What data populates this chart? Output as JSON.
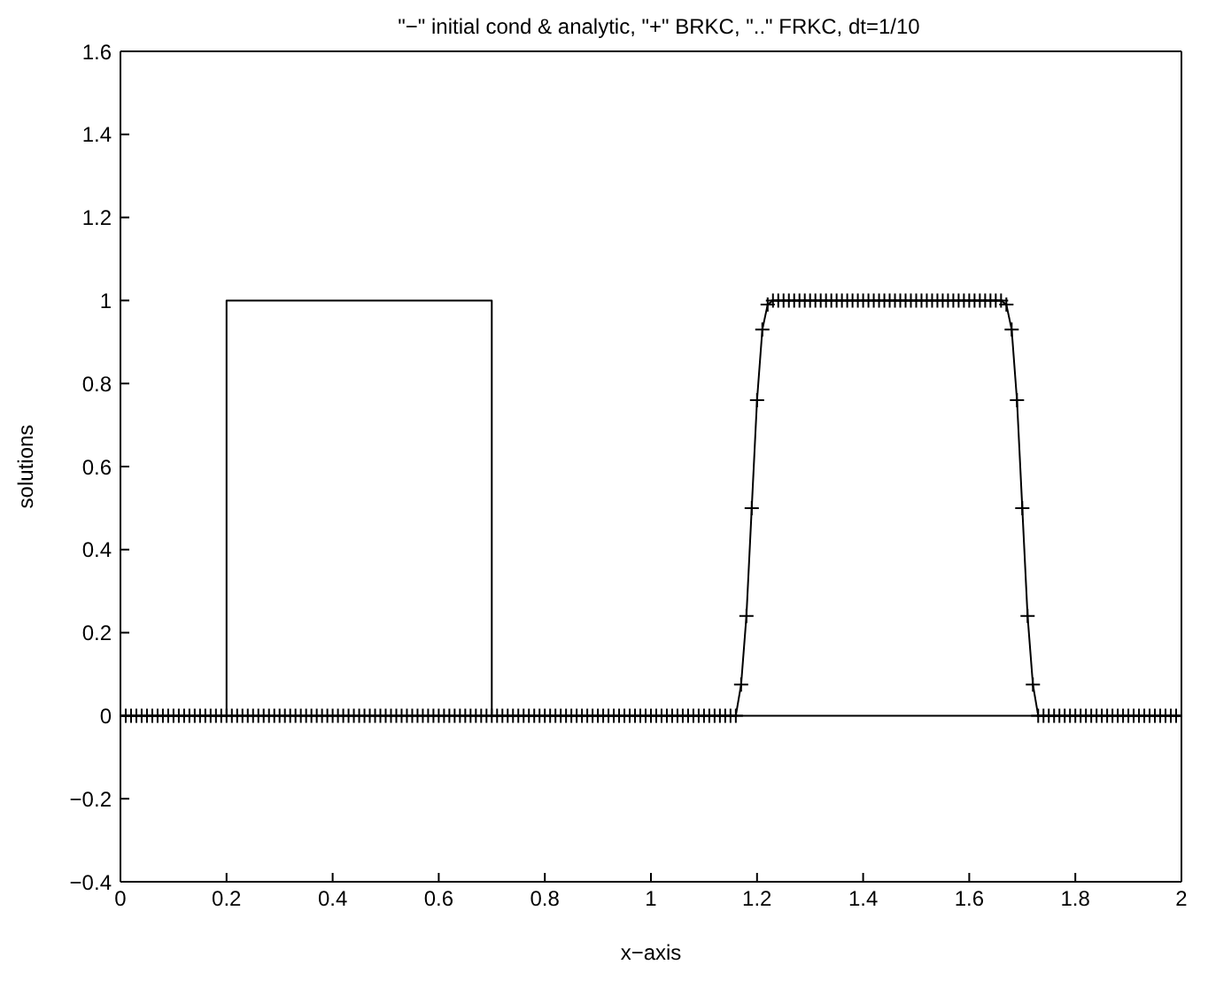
{
  "chart_data": {
    "type": "line",
    "title": "\"−\" initial cond & analytic, \"+\" BRKC, \"..\" FRKC, dt=1/10",
    "xlabel": "x−axis",
    "ylabel": "solutions",
    "xlim": [
      0,
      2
    ],
    "ylim": [
      -0.4,
      1.6
    ],
    "xticks": [
      0,
      0.2,
      0.4,
      0.6,
      0.8,
      1,
      1.2,
      1.4,
      1.6,
      1.8,
      2
    ],
    "yticks": [
      -0.4,
      -0.2,
      0,
      0.2,
      0.4,
      0.6,
      0.8,
      1,
      1.2,
      1.4,
      1.6
    ],
    "grid": false,
    "legend": false,
    "series": [
      {
        "color": "#000000",
        "line_style": "solid",
        "marker": "none",
        "x": [
          0,
          0.2,
          0.2,
          0.7,
          0.7,
          2
        ],
        "values": [
          0,
          0,
          1,
          1,
          0,
          0
        ]
      },
      {
        "color": "#000000",
        "line_style": "solid",
        "marker": "none",
        "x": [
          0,
          1.16,
          1.17,
          1.18,
          1.19,
          1.2,
          1.21,
          1.22,
          1.23,
          1.66,
          1.67,
          1.68,
          1.69,
          1.7,
          1.71,
          1.72,
          1.73,
          2
        ],
        "values": [
          0,
          0,
          0.075,
          0.24,
          0.5,
          0.76,
          0.93,
          0.99,
          1,
          1,
          0.99,
          0.93,
          0.76,
          0.5,
          0.24,
          0.075,
          0,
          0
        ]
      },
      {
        "type": "scatter",
        "color": "#000000",
        "marker": "cross",
        "x": [
          0,
          0.01,
          0.02,
          0.03,
          0.04,
          0.05,
          0.06,
          0.07,
          0.08,
          0.09,
          0.1,
          0.11,
          0.12,
          0.13,
          0.14,
          0.15,
          0.16,
          0.17,
          0.18,
          0.19,
          0.2,
          0.21,
          0.22,
          0.23,
          0.24,
          0.25,
          0.26,
          0.27,
          0.28,
          0.29,
          0.3,
          0.31,
          0.32,
          0.33,
          0.34,
          0.35,
          0.36,
          0.37,
          0.38,
          0.39,
          0.4,
          0.41,
          0.42,
          0.43,
          0.44,
          0.45,
          0.46,
          0.47,
          0.48,
          0.49,
          0.5,
          0.51,
          0.52,
          0.53,
          0.54,
          0.55,
          0.56,
          0.57,
          0.58,
          0.59,
          0.6,
          0.61,
          0.62,
          0.63,
          0.64,
          0.65,
          0.66,
          0.67,
          0.68,
          0.69,
          0.7,
          0.71,
          0.72,
          0.73,
          0.74,
          0.75,
          0.76,
          0.77,
          0.78,
          0.79,
          0.8,
          0.81,
          0.82,
          0.83,
          0.84,
          0.85,
          0.86,
          0.87,
          0.88,
          0.89,
          0.9,
          0.91,
          0.92,
          0.93,
          0.94,
          0.95,
          0.96,
          0.97,
          0.98,
          0.99,
          1,
          1.01,
          1.02,
          1.03,
          1.04,
          1.05,
          1.06,
          1.07,
          1.08,
          1.09,
          1.1,
          1.11,
          1.12,
          1.13,
          1.14,
          1.15,
          1.16,
          1.17,
          1.18,
          1.19,
          1.2,
          1.21,
          1.22,
          1.23,
          1.24,
          1.25,
          1.26,
          1.27,
          1.28,
          1.29,
          1.3,
          1.31,
          1.32,
          1.33,
          1.34,
          1.35,
          1.36,
          1.37,
          1.38,
          1.39,
          1.4,
          1.41,
          1.42,
          1.43,
          1.44,
          1.45,
          1.46,
          1.47,
          1.48,
          1.49,
          1.5,
          1.51,
          1.52,
          1.53,
          1.54,
          1.55,
          1.56,
          1.57,
          1.58,
          1.59,
          1.6,
          1.61,
          1.62,
          1.63,
          1.64,
          1.65,
          1.66,
          1.67,
          1.68,
          1.69,
          1.7,
          1.71,
          1.72,
          1.73,
          1.74,
          1.75,
          1.76,
          1.77,
          1.78,
          1.79,
          1.8,
          1.81,
          1.82,
          1.83,
          1.84,
          1.85,
          1.86,
          1.87,
          1.88,
          1.89,
          1.9,
          1.91,
          1.92,
          1.93,
          1.94,
          1.95,
          1.96,
          1.97,
          1.98,
          1.99,
          2
        ],
        "values": [
          0,
          0,
          0,
          0,
          0,
          0,
          0,
          0,
          0,
          0,
          0,
          0,
          0,
          0,
          0,
          0,
          0,
          0,
          0,
          0,
          0,
          0,
          0,
          0,
          0,
          0,
          0,
          0,
          0,
          0,
          0,
          0,
          0,
          0,
          0,
          0,
          0,
          0,
          0,
          0,
          0,
          0,
          0,
          0,
          0,
          0,
          0,
          0,
          0,
          0,
          0,
          0,
          0,
          0,
          0,
          0,
          0,
          0,
          0,
          0,
          0,
          0,
          0,
          0,
          0,
          0,
          0,
          0,
          0,
          0,
          0,
          0,
          0,
          0,
          0,
          0,
          0,
          0,
          0,
          0,
          0,
          0,
          0,
          0,
          0,
          0,
          0,
          0,
          0,
          0,
          0,
          0,
          0,
          0,
          0,
          0,
          0,
          0,
          0,
          0,
          0,
          0,
          0,
          0,
          0,
          0,
          0,
          0,
          0,
          0,
          0,
          0,
          0,
          0,
          0,
          0,
          0,
          0.075,
          0.24,
          0.5,
          0.76,
          0.93,
          0.99,
          1,
          1,
          1,
          1,
          1,
          1,
          1,
          1,
          1,
          1,
          1,
          1,
          1,
          1,
          1,
          1,
          1,
          1,
          1,
          1,
          1,
          1,
          1,
          1,
          1,
          1,
          1,
          1,
          1,
          1,
          1,
          1,
          1,
          1,
          1,
          1,
          1,
          1,
          1,
          1,
          1,
          1,
          1,
          1,
          0.99,
          0.93,
          0.76,
          0.5,
          0.24,
          0.075,
          0,
          0,
          0,
          0,
          0,
          0,
          0,
          0,
          0,
          0,
          0,
          0,
          0,
          0,
          0,
          0,
          0,
          0,
          0,
          0,
          0,
          0,
          0,
          0,
          0,
          0,
          0,
          0
        ]
      }
    ]
  }
}
